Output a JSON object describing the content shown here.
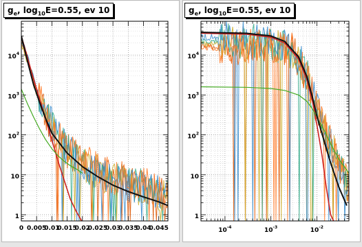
{
  "chart_data": [
    {
      "type": "line",
      "title_parts": {
        "a": "g",
        "b": "e",
        "c": ", log",
        "d": "10",
        "e": "E=0.55, ev 10"
      },
      "xscale": "linear",
      "yscale": "log",
      "xlim": [
        0,
        0.048
      ],
      "ylim": [
        0.7,
        70000
      ],
      "grid": true,
      "xticks": [
        {
          "v": 0,
          "label": "0"
        },
        {
          "v": 0.005,
          "label": "0.005"
        },
        {
          "v": 0.01,
          "label": "0.01"
        },
        {
          "v": 0.015,
          "label": "0.015"
        },
        {
          "v": 0.02,
          "label": "0.02"
        },
        {
          "v": 0.025,
          "label": "0.025"
        },
        {
          "v": 0.03,
          "label": "0.03"
        },
        {
          "v": 0.035,
          "label": "0.035"
        },
        {
          "v": 0.04,
          "label": "0.04"
        },
        {
          "v": 0.045,
          "label": "0.045"
        }
      ],
      "yticks": [
        {
          "v": 1,
          "base": "1",
          "exp": ""
        },
        {
          "v": 10,
          "base": "10",
          "exp": ""
        },
        {
          "v": 100,
          "base": "10",
          "exp": "2"
        },
        {
          "v": 1000,
          "base": "10",
          "exp": "3"
        },
        {
          "v": 10000,
          "base": "10",
          "exp": "4"
        }
      ],
      "series": [
        {
          "color": "#cc2222",
          "width": 1.6,
          "x": [
            0,
            0.004,
            0.008,
            0.012,
            0.016,
            0.018,
            0.02
          ],
          "y": [
            30000,
            2500,
            250,
            22,
            2.5,
            1.2,
            0.6
          ]
        },
        {
          "color": "#44aa22",
          "width": 1.2,
          "x": [
            0,
            0.002,
            0.004,
            0.006,
            0.008,
            0.01,
            0.012,
            0.014,
            0.016,
            0.018,
            0.02
          ],
          "y": [
            1400,
            600,
            280,
            140,
            75,
            45,
            30,
            22,
            17,
            14,
            11
          ]
        },
        {
          "color": "#111111",
          "width": 2,
          "x": [
            0,
            0.002,
            0.004,
            0.006,
            0.008,
            0.01,
            0.015,
            0.02,
            0.025,
            0.03,
            0.035,
            0.04,
            0.045,
            0.048
          ],
          "y": [
            30000,
            7000,
            1800,
            650,
            250,
            110,
            35,
            16,
            9,
            5.5,
            3.8,
            2.8,
            2.1,
            1.7
          ]
        }
      ],
      "noise": [
        {
          "color": "#dd5500",
          "x": [
            0,
            0.002,
            0.005,
            0.01,
            0.015,
            0.02,
            0.03,
            0.04,
            0.048
          ],
          "y": [
            20000,
            8000,
            1200,
            150,
            40,
            20,
            8,
            5,
            3
          ]
        },
        {
          "color": "#ccaa22",
          "x": [
            0,
            0.002,
            0.005,
            0.01,
            0.015,
            0.02,
            0.03,
            0.04,
            0.048
          ],
          "y": [
            18000,
            7000,
            1000,
            140,
            38,
            18,
            7,
            4,
            3
          ]
        },
        {
          "color": "#33aa88",
          "x": [
            0,
            0.002,
            0.005,
            0.01,
            0.015,
            0.02,
            0.03,
            0.04,
            0.048
          ],
          "y": [
            22000,
            9000,
            1300,
            160,
            42,
            18,
            8,
            5,
            3
          ]
        },
        {
          "color": "#3388cc",
          "x": [
            0,
            0.002,
            0.005,
            0.01,
            0.015,
            0.02,
            0.03,
            0.04,
            0.048
          ],
          "y": [
            25000,
            9000,
            1400,
            170,
            40,
            18,
            7,
            5,
            3
          ]
        },
        {
          "color": "#ff7722",
          "x": [
            0,
            0.002,
            0.005,
            0.01,
            0.015,
            0.02,
            0.03,
            0.04,
            0.048
          ],
          "y": [
            24000,
            8500,
            1300,
            160,
            45,
            22,
            9,
            6,
            3
          ]
        }
      ]
    },
    {
      "type": "line",
      "title_parts": {
        "a": "g",
        "b": "e",
        "c": ", log",
        "d": "10",
        "e": "E=0.55, ev 10"
      },
      "xscale": "log",
      "yscale": "log",
      "xlim": [
        3e-05,
        0.05
      ],
      "ylim": [
        0.7,
        70000
      ],
      "grid": true,
      "xticks": [
        {
          "v": 0.0001,
          "base": "10",
          "exp": "-4"
        },
        {
          "v": 0.001,
          "base": "10",
          "exp": "-3"
        },
        {
          "v": 0.01,
          "base": "10",
          "exp": "-2"
        }
      ],
      "yticks": [
        {
          "v": 1,
          "base": "1",
          "exp": ""
        },
        {
          "v": 10,
          "base": "10",
          "exp": ""
        },
        {
          "v": 100,
          "base": "10",
          "exp": "2"
        },
        {
          "v": 1000,
          "base": "10",
          "exp": "3"
        },
        {
          "v": 10000,
          "base": "10",
          "exp": "4"
        }
      ],
      "series": [
        {
          "color": "#cc2222",
          "width": 1.6,
          "x": [
            3e-05,
            0.0003,
            0.001,
            0.002,
            0.004,
            0.006,
            0.008,
            0.01,
            0.013,
            0.016,
            0.02,
            0.024
          ],
          "y": [
            35000,
            33000,
            28000,
            20000,
            8000,
            2500,
            700,
            180,
            30,
            5,
            1,
            0.6
          ]
        },
        {
          "color": "#44aa22",
          "width": 1.2,
          "x": [
            3e-05,
            0.0003,
            0.001,
            0.002,
            0.004,
            0.006,
            0.008,
            0.01,
            0.015,
            0.02,
            0.03,
            0.05
          ],
          "y": [
            1600,
            1550,
            1450,
            1300,
            1000,
            700,
            450,
            280,
            120,
            60,
            25,
            11
          ]
        },
        {
          "color": "#111111",
          "width": 2,
          "x": [
            3e-05,
            0.0003,
            0.001,
            0.002,
            0.004,
            0.006,
            0.008,
            0.01,
            0.015,
            0.02,
            0.03,
            0.045
          ],
          "y": [
            37000,
            35000,
            30000,
            22000,
            9000,
            3000,
            900,
            300,
            60,
            20,
            5,
            1.7
          ]
        }
      ],
      "noise": [
        {
          "color": "#dd5500",
          "x": [
            3e-05,
            0.0003,
            0.001,
            0.003,
            0.006,
            0.01,
            0.02,
            0.035,
            0.05
          ],
          "y": [
            16000,
            16000,
            17000,
            12000,
            3000,
            400,
            50,
            12,
            4
          ]
        },
        {
          "color": "#ccaa22",
          "x": [
            3e-05,
            0.0003,
            0.001,
            0.003,
            0.006,
            0.01,
            0.02,
            0.035,
            0.05
          ],
          "y": [
            19000,
            19000,
            18000,
            12500,
            3200,
            420,
            60,
            14,
            4
          ]
        },
        {
          "color": "#33aa88",
          "x": [
            3e-05,
            0.0003,
            0.001,
            0.003,
            0.006,
            0.01,
            0.02,
            0.035,
            0.05
          ],
          "y": [
            22000,
            22000,
            20000,
            13000,
            3300,
            400,
            55,
            12,
            4
          ]
        },
        {
          "color": "#3388cc",
          "x": [
            3e-05,
            0.0003,
            0.001,
            0.003,
            0.006,
            0.01,
            0.02,
            0.035,
            0.05
          ],
          "y": [
            28000,
            27000,
            24000,
            14000,
            3500,
            450,
            60,
            12,
            4
          ]
        },
        {
          "color": "#ff7722",
          "x": [
            3e-05,
            0.0003,
            0.001,
            0.003,
            0.006,
            0.01,
            0.02,
            0.035,
            0.05
          ],
          "y": [
            15000,
            16000,
            19000,
            13000,
            3100,
            430,
            65,
            15,
            4
          ]
        }
      ]
    }
  ]
}
